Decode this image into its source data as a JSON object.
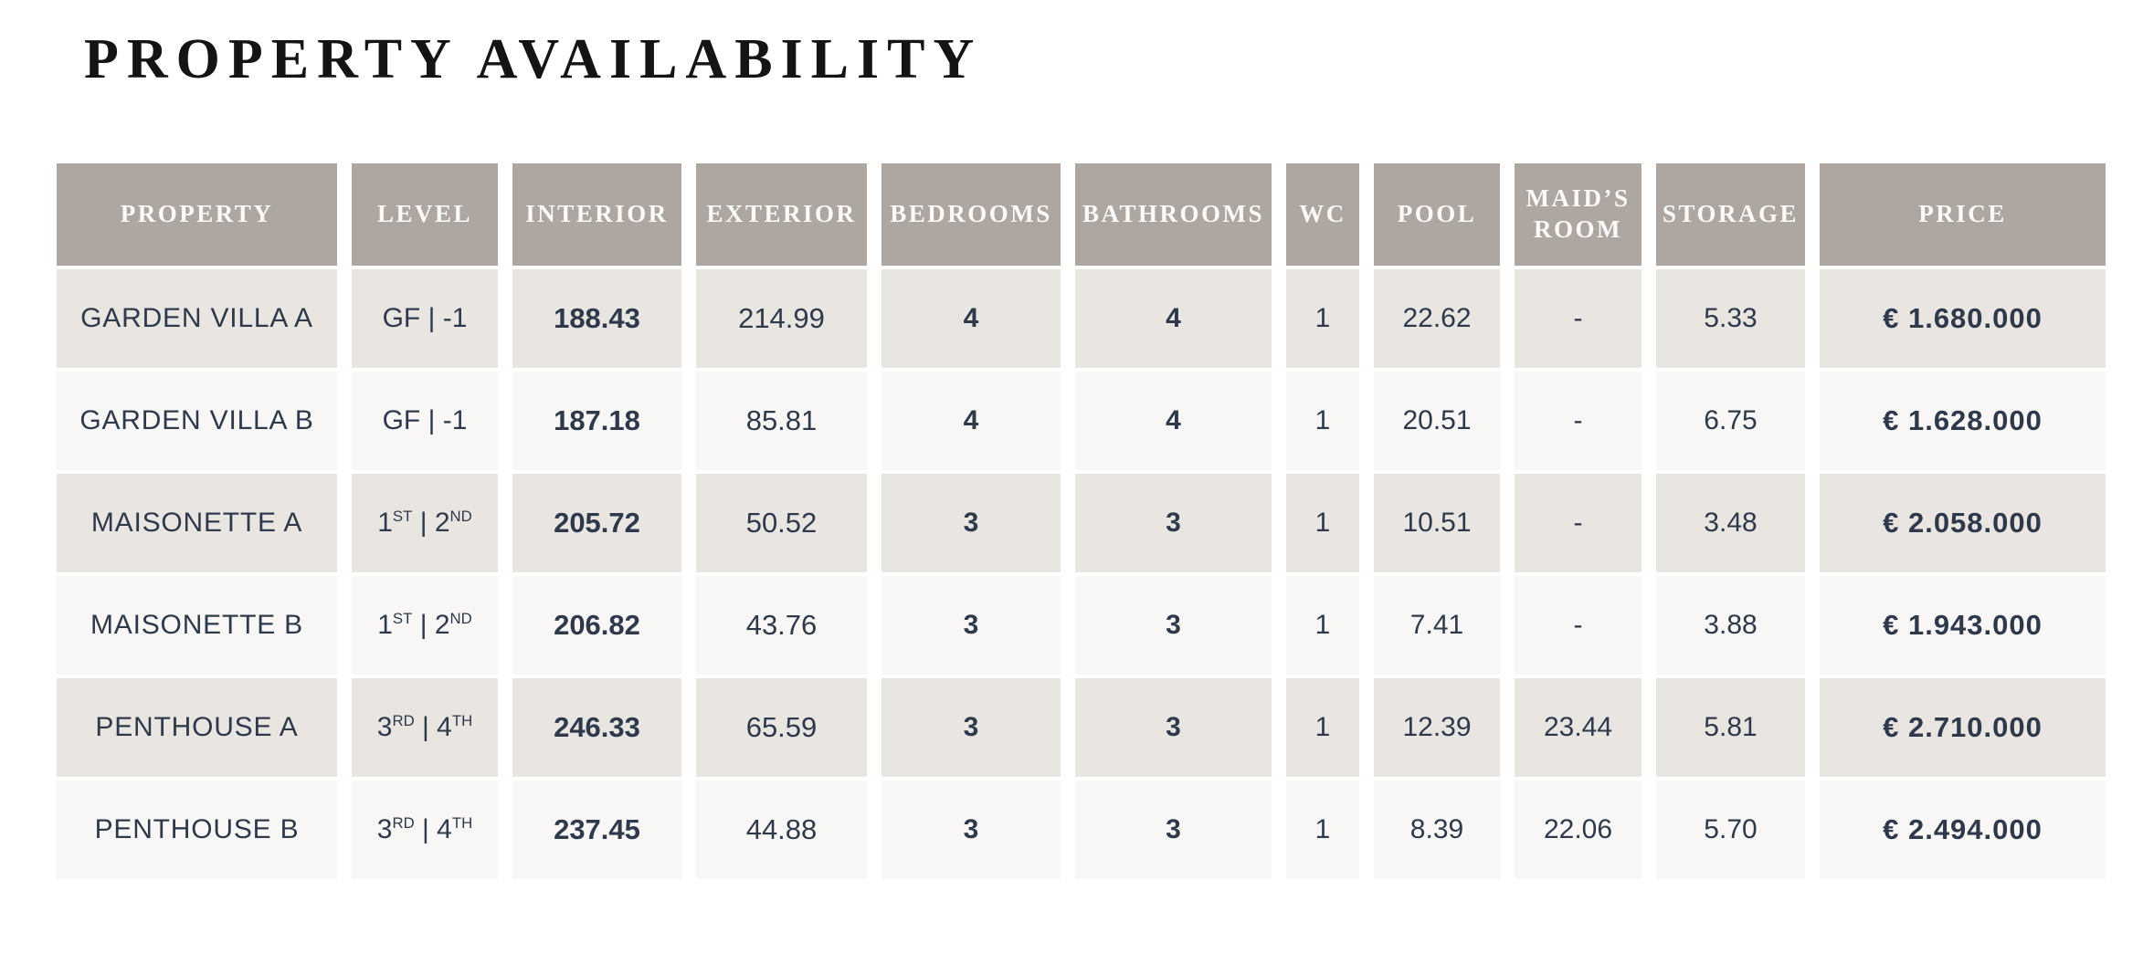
{
  "page": {
    "title": "PROPERTY AVAILABILITY"
  },
  "colors": {
    "page_bg": "#ffffff",
    "header_bg": "#aea7a1",
    "header_text": "#fbfaf9",
    "row_bg": "#f8f7f5",
    "row_alt_bg": "#e9e6e2",
    "cell_text": "#2e3a4b",
    "title_text": "#141414"
  },
  "table": {
    "columns": [
      {
        "key": "property",
        "label": "PROPERTY"
      },
      {
        "key": "level",
        "label": "LEVEL"
      },
      {
        "key": "interior",
        "label": "INTERIOR"
      },
      {
        "key": "exterior",
        "label": "EXTERIOR"
      },
      {
        "key": "bedrooms",
        "label": "BEDROOMS"
      },
      {
        "key": "bathrooms",
        "label": "BATHROOMS"
      },
      {
        "key": "wc",
        "label": "WC"
      },
      {
        "key": "pool",
        "label": "POOL"
      },
      {
        "key": "maids_room",
        "label": "MAID’S ROOM"
      },
      {
        "key": "storage",
        "label": "STORAGE"
      },
      {
        "key": "price",
        "label": "PRICE"
      }
    ],
    "rows": [
      {
        "property": "GARDEN VILLA A",
        "level": [
          {
            "text": "GF | -1"
          }
        ],
        "interior": "188.43",
        "exterior": "214.99",
        "bedrooms": "4",
        "bathrooms": "4",
        "wc": "1",
        "pool": "22.62",
        "maids_room": "-",
        "storage": "5.33",
        "price": "€ 1.680.000"
      },
      {
        "property": "GARDEN VILLA B",
        "level": [
          {
            "text": "GF | -1"
          }
        ],
        "interior": "187.18",
        "exterior": "85.81",
        "bedrooms": "4",
        "bathrooms": "4",
        "wc": "1",
        "pool": "20.51",
        "maids_room": "-",
        "storage": "6.75",
        "price": "€ 1.628.000"
      },
      {
        "property": "MAISONETTE A",
        "level": [
          {
            "text": "1"
          },
          {
            "text": "ST",
            "sup": true
          },
          {
            "text": " | "
          },
          {
            "text": "2"
          },
          {
            "text": "ND",
            "sup": true
          }
        ],
        "interior": "205.72",
        "exterior": "50.52",
        "bedrooms": "3",
        "bathrooms": "3",
        "wc": "1",
        "pool": "10.51",
        "maids_room": "-",
        "storage": "3.48",
        "price": "€ 2.058.000"
      },
      {
        "property": "MAISONETTE B",
        "level": [
          {
            "text": "1"
          },
          {
            "text": "ST",
            "sup": true
          },
          {
            "text": " | "
          },
          {
            "text": "2"
          },
          {
            "text": "ND",
            "sup": true
          }
        ],
        "interior": "206.82",
        "exterior": "43.76",
        "bedrooms": "3",
        "bathrooms": "3",
        "wc": "1",
        "pool": "7.41",
        "maids_room": "-",
        "storage": "3.88",
        "price": "€ 1.943.000"
      },
      {
        "property": "PENTHOUSE A",
        "level": [
          {
            "text": "3"
          },
          {
            "text": "RD",
            "sup": true
          },
          {
            "text": " | "
          },
          {
            "text": "4"
          },
          {
            "text": "TH",
            "sup": true
          }
        ],
        "interior": "246.33",
        "exterior": "65.59",
        "bedrooms": "3",
        "bathrooms": "3",
        "wc": "1",
        "pool": "12.39",
        "maids_room": "23.44",
        "storage": "5.81",
        "price": "€ 2.710.000"
      },
      {
        "property": "PENTHOUSE B",
        "level": [
          {
            "text": "3"
          },
          {
            "text": "RD",
            "sup": true
          },
          {
            "text": " | "
          },
          {
            "text": "4"
          },
          {
            "text": "TH",
            "sup": true
          }
        ],
        "interior": "237.45",
        "exterior": "44.88",
        "bedrooms": "3",
        "bathrooms": "3",
        "wc": "1",
        "pool": "8.39",
        "maids_room": "22.06",
        "storage": "5.70",
        "price": "€ 2.494.000"
      }
    ]
  }
}
